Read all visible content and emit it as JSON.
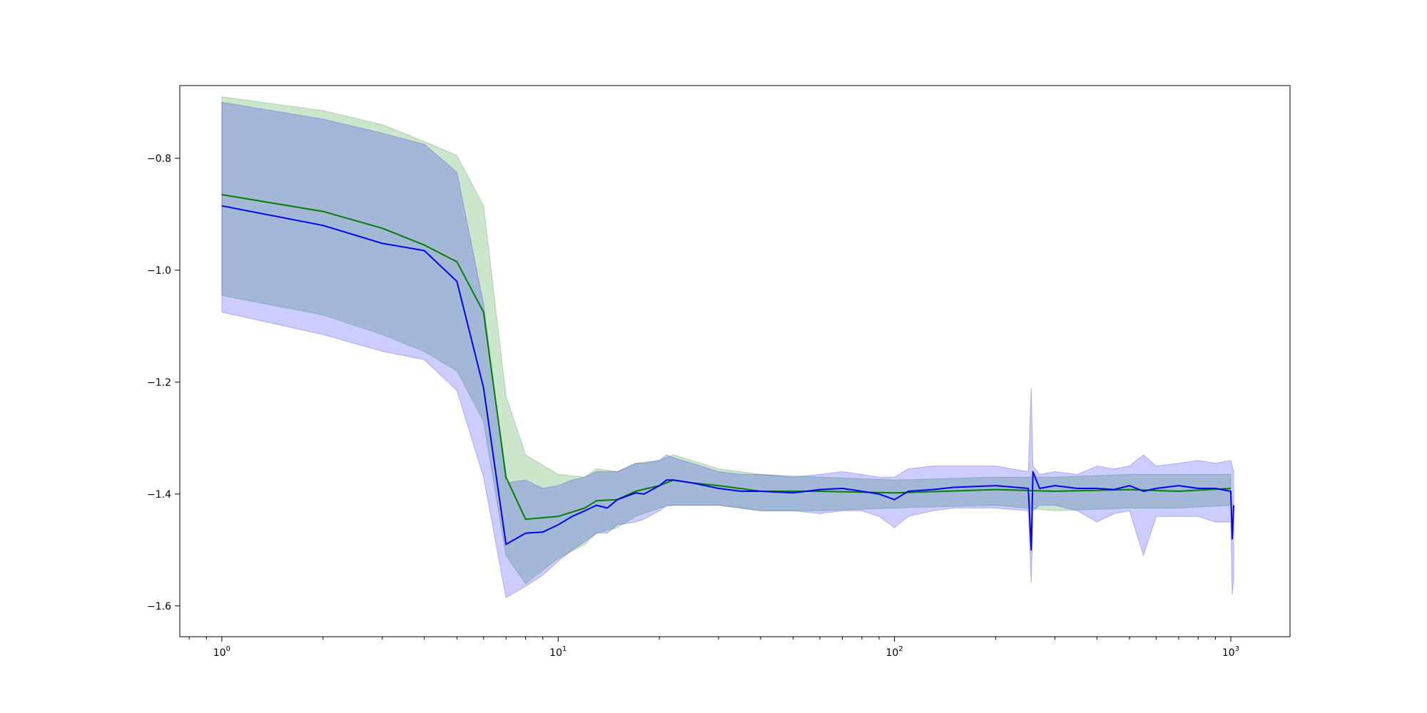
{
  "chart_data": {
    "type": "line",
    "title": "",
    "xlabel": "",
    "ylabel": "",
    "xscale": "log",
    "xlim": [
      0.75,
      1500
    ],
    "ylim": [
      -1.655,
      -0.67
    ],
    "grid": false,
    "x_ticks": [
      {
        "value": 1,
        "base": "10",
        "exp": "0"
      },
      {
        "value": 10,
        "base": "10",
        "exp": "1"
      },
      {
        "value": 100,
        "base": "10",
        "exp": "2"
      },
      {
        "value": 1000,
        "base": "10",
        "exp": "3"
      }
    ],
    "y_ticks": [
      {
        "value": -0.8,
        "label": "−0.8"
      },
      {
        "value": -1.0,
        "label": "−1.0"
      },
      {
        "value": -1.2,
        "label": "−1.2"
      },
      {
        "value": -1.4,
        "label": "−1.4"
      },
      {
        "value": -1.6,
        "label": "−1.6"
      }
    ],
    "series": [
      {
        "color": "#008000",
        "band_color": "#008000",
        "band_opacity": 0.2,
        "x": [
          1,
          2,
          3,
          4,
          5,
          6,
          7,
          8,
          10,
          12,
          13,
          15,
          17,
          20,
          22,
          25,
          30,
          40,
          60,
          100,
          200,
          300,
          500,
          700,
          1000
        ],
        "mean": [
          -0.865,
          -0.895,
          -0.925,
          -0.955,
          -0.985,
          -1.075,
          -1.37,
          -1.445,
          -1.44,
          -1.425,
          -1.412,
          -1.41,
          -1.395,
          -1.385,
          -1.375,
          -1.38,
          -1.385,
          -1.395,
          -1.395,
          -1.398,
          -1.392,
          -1.395,
          -1.392,
          -1.395,
          -1.39
        ],
        "upper": [
          -0.69,
          -0.715,
          -0.74,
          -0.77,
          -0.795,
          -0.885,
          -1.225,
          -1.33,
          -1.365,
          -1.37,
          -1.355,
          -1.36,
          -1.345,
          -1.34,
          -1.33,
          -1.34,
          -1.355,
          -1.365,
          -1.37,
          -1.375,
          -1.37,
          -1.37,
          -1.365,
          -1.365,
          -1.365
        ],
        "lower": [
          -1.045,
          -1.08,
          -1.115,
          -1.145,
          -1.18,
          -1.27,
          -1.51,
          -1.56,
          -1.515,
          -1.49,
          -1.47,
          -1.46,
          -1.44,
          -1.425,
          -1.42,
          -1.42,
          -1.42,
          -1.43,
          -1.43,
          -1.425,
          -1.42,
          -1.43,
          -1.425,
          -1.425,
          -1.42
        ]
      },
      {
        "color": "#0000ff",
        "band_color": "#0000ff",
        "band_opacity": 0.2,
        "x": [
          1,
          2,
          3,
          4,
          5,
          6,
          7,
          8,
          9,
          10,
          11,
          12,
          13,
          14,
          15,
          17,
          18,
          20,
          21,
          22,
          25,
          30,
          35,
          40,
          50,
          60,
          70,
          80,
          90,
          100,
          110,
          130,
          150,
          200,
          250,
          255,
          258,
          270,
          300,
          350,
          400,
          450,
          500,
          550,
          600,
          700,
          800,
          900,
          1000,
          1010,
          1020
        ],
        "mean": [
          -0.885,
          -0.92,
          -0.952,
          -0.965,
          -1.02,
          -1.21,
          -1.49,
          -1.47,
          -1.468,
          -1.455,
          -1.44,
          -1.43,
          -1.42,
          -1.425,
          -1.41,
          -1.398,
          -1.4,
          -1.385,
          -1.375,
          -1.375,
          -1.38,
          -1.39,
          -1.395,
          -1.395,
          -1.398,
          -1.392,
          -1.39,
          -1.395,
          -1.4,
          -1.41,
          -1.395,
          -1.392,
          -1.388,
          -1.385,
          -1.39,
          -1.5,
          -1.36,
          -1.39,
          -1.385,
          -1.39,
          -1.39,
          -1.392,
          -1.385,
          -1.395,
          -1.39,
          -1.385,
          -1.39,
          -1.39,
          -1.395,
          -1.48,
          -1.42
        ],
        "upper": [
          -0.7,
          -0.73,
          -0.755,
          -0.775,
          -0.825,
          -1.06,
          -1.38,
          -1.375,
          -1.39,
          -1.385,
          -1.375,
          -1.37,
          -1.36,
          -1.36,
          -1.36,
          -1.345,
          -1.345,
          -1.34,
          -1.33,
          -1.335,
          -1.345,
          -1.36,
          -1.365,
          -1.365,
          -1.37,
          -1.365,
          -1.36,
          -1.365,
          -1.37,
          -1.37,
          -1.355,
          -1.35,
          -1.35,
          -1.35,
          -1.36,
          -1.21,
          -1.35,
          -1.365,
          -1.36,
          -1.365,
          -1.35,
          -1.355,
          -1.35,
          -1.33,
          -1.35,
          -1.345,
          -1.34,
          -1.345,
          -1.34,
          -1.35,
          -1.36
        ],
        "lower": [
          -1.075,
          -1.115,
          -1.145,
          -1.16,
          -1.215,
          -1.37,
          -1.585,
          -1.565,
          -1.545,
          -1.52,
          -1.5,
          -1.485,
          -1.47,
          -1.47,
          -1.455,
          -1.45,
          -1.445,
          -1.43,
          -1.42,
          -1.42,
          -1.42,
          -1.42,
          -1.425,
          -1.43,
          -1.43,
          -1.435,
          -1.43,
          -1.43,
          -1.44,
          -1.46,
          -1.44,
          -1.43,
          -1.425,
          -1.425,
          -1.43,
          -1.56,
          -1.43,
          -1.42,
          -1.42,
          -1.43,
          -1.45,
          -1.435,
          -1.43,
          -1.51,
          -1.44,
          -1.44,
          -1.44,
          -1.45,
          -1.45,
          -1.58,
          -1.55
        ]
      }
    ]
  }
}
